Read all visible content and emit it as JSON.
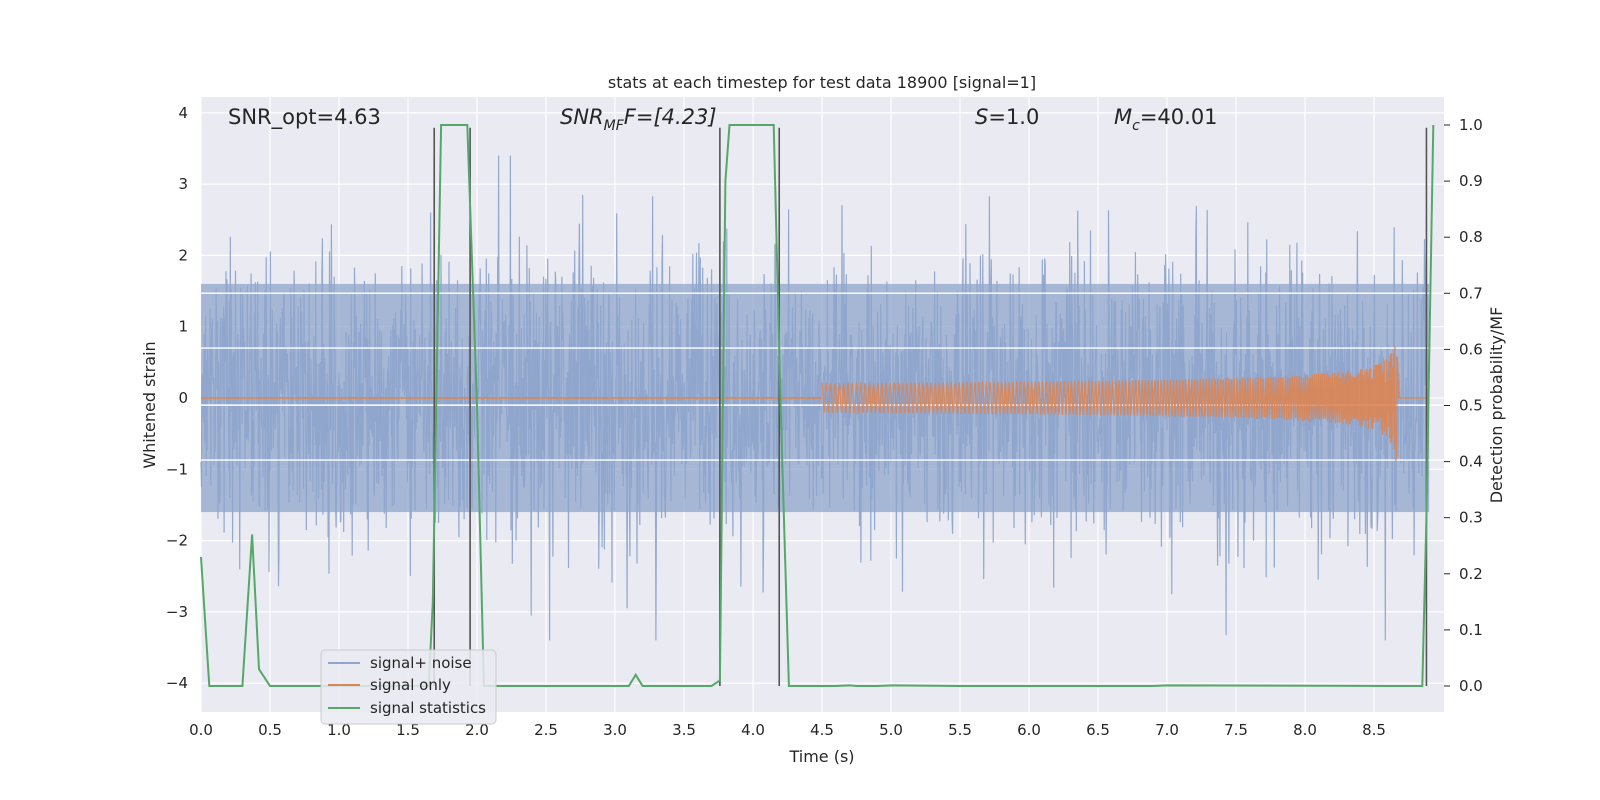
{
  "chart_data": {
    "type": "line",
    "title": "stats at each timestep for test data 18900 [signal=1]",
    "xlabel": "Time (s)",
    "ylabel_left": "Whitened strain",
    "ylabel_right": "Detection probability/MF",
    "xlim": [
      0.0,
      9.0
    ],
    "ylim_left": [
      -4.3,
      4.2
    ],
    "ylim_right": [
      -0.047,
      1.02
    ],
    "x_ticks": [
      "0.0",
      "0.5",
      "1.0",
      "1.5",
      "2.0",
      "2.5",
      "3.0",
      "3.5",
      "4.0",
      "4.5",
      "5.0",
      "5.5",
      "6.0",
      "6.5",
      "7.0",
      "7.5",
      "8.0",
      "8.5"
    ],
    "x_tick_values": [
      0.0,
      0.5,
      1.0,
      1.5,
      2.0,
      2.5,
      3.0,
      3.5,
      4.0,
      4.5,
      5.0,
      5.5,
      6.0,
      6.5,
      7.0,
      7.5,
      8.0,
      8.5
    ],
    "y_left_ticks": [
      "4",
      "3",
      "2",
      "1",
      "0",
      "−1",
      "−2",
      "−3",
      "−4"
    ],
    "y_left_tick_values": [
      4,
      3,
      2,
      1,
      0,
      -1,
      -2,
      -3,
      -4
    ],
    "y_right_ticks": [
      "1.0",
      "0.9",
      "0.8",
      "0.7",
      "0.6",
      "0.5",
      "0.4",
      "0.3",
      "0.2",
      "0.1",
      "0.0"
    ],
    "y_right_tick_values": [
      1.0,
      0.9,
      0.8,
      0.7,
      0.6,
      0.5,
      0.4,
      0.3,
      0.2,
      0.1,
      0.0
    ],
    "annotations": {
      "snr_opt": "SNR_opt=4.63",
      "snr_mf_main": "SNR",
      "snr_mf_sub": "MF",
      "snr_mf_rest": "F=[4.23]",
      "s_main": "S",
      "s_rest": "=1.0",
      "mc_main": "M",
      "mc_sub": "c",
      "mc_rest": "=40.01"
    },
    "legend": {
      "placement": "lower-left",
      "entries": [
        {
          "label": "signal+ noise",
          "color": "#8fa5cc"
        },
        {
          "label": "signal only",
          "color": "#dd8452"
        },
        {
          "label": "signal statistics",
          "color": "#55a868"
        }
      ]
    },
    "series": [
      {
        "name": "signal+ noise",
        "axis": "left",
        "style": "dense noise band",
        "duration_s": 8.9,
        "typical_range": [
          -1.6,
          1.6
        ],
        "max": 3.4,
        "min": -3.4
      },
      {
        "name": "signal only",
        "axis": "left",
        "style": "chirp",
        "start_s": 4.5,
        "end_s": 8.67,
        "max_amplitude": 1.2
      },
      {
        "name": "signal statistics",
        "axis": "right",
        "x": [
          0.0,
          0.06,
          0.3,
          0.37,
          0.42,
          0.5,
          1.65,
          1.68,
          1.74,
          1.93,
          2.0,
          2.05,
          3.1,
          3.15,
          3.2,
          3.7,
          3.76,
          3.8,
          3.83,
          3.9,
          4.15,
          4.2,
          4.26,
          4.6,
          4.7,
          4.75,
          4.9,
          5.0,
          5.5,
          6.9,
          7.0,
          8.85,
          8.88,
          8.93
        ],
        "values": [
          0.23,
          0.0,
          0.0,
          0.27,
          0.03,
          0.0,
          0.0,
          0.15,
          1.0,
          1.0,
          0.5,
          0.0,
          0.0,
          0.02,
          0.0,
          0.0,
          0.01,
          0.9,
          1.0,
          1.0,
          1.0,
          0.5,
          0.0,
          0.0,
          0.001,
          0.0,
          0.0,
          0.001,
          0.0,
          0.0,
          0.001,
          0.0,
          0.3,
          1.0
        ]
      }
    ],
    "vertical_markers": [
      {
        "x": 1.69,
        "y_top": 0.995,
        "y_bottom": 0.0
      },
      {
        "x": 1.95,
        "y_top": 0.995,
        "y_bottom": 0.0
      },
      {
        "x": 3.76,
        "y_top": 0.995,
        "y_bottom": 0.0
      },
      {
        "x": 4.19,
        "y_top": 0.995,
        "y_bottom": 0.0
      },
      {
        "x": 8.88,
        "y_top": 0.995,
        "y_bottom": 0.0
      }
    ],
    "white_horizontal_lines_strain": [
      1.47,
      0.7,
      -0.1,
      -0.87
    ]
  }
}
